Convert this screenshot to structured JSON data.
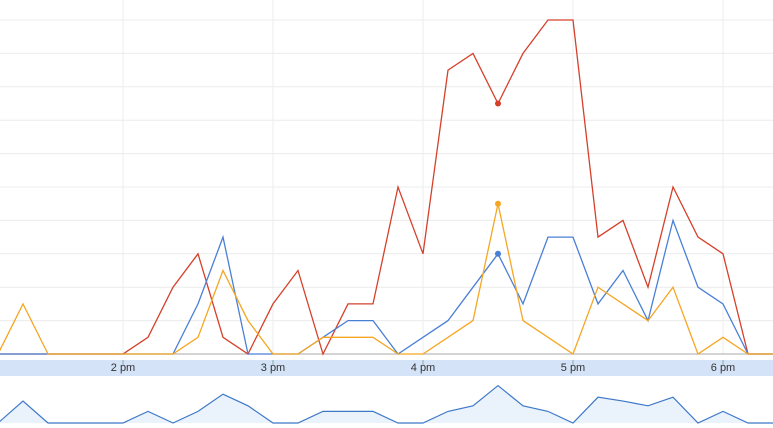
{
  "chart_data": {
    "type": "line",
    "x": [
      790,
      800,
      810,
      820,
      830,
      840,
      850,
      860,
      870,
      880,
      890,
      900,
      910,
      920,
      930,
      940,
      950,
      960,
      970,
      980,
      990,
      1000,
      1010,
      1020,
      1030,
      1040,
      1050,
      1060,
      1070,
      1080,
      1090,
      1100
    ],
    "series": [
      {
        "color": "#d6402a",
        "values": [
          0,
          0,
          0,
          0,
          0,
          0,
          0.5,
          2,
          3,
          0.5,
          0,
          1.5,
          2.5,
          0,
          1.5,
          1.5,
          5,
          3,
          8.5,
          9,
          7.5,
          9,
          10,
          10,
          3.5,
          4,
          2,
          5,
          3.5,
          3,
          0,
          0
        ]
      },
      {
        "color": "#4a7fd6",
        "values": [
          0,
          0,
          0,
          0,
          0,
          0,
          0,
          0,
          1.5,
          3.5,
          0,
          0,
          0,
          0.5,
          1,
          1,
          0,
          0.5,
          1,
          2,
          3,
          1.5,
          3.5,
          3.5,
          1.5,
          2.5,
          1,
          4,
          2,
          1.5,
          0,
          0
        ]
      },
      {
        "color": "#f5a623",
        "values": [
          0,
          1.5,
          0,
          0,
          0,
          0,
          0,
          0,
          0.5,
          2.5,
          1,
          0,
          0,
          0.5,
          0.5,
          0.5,
          0,
          0,
          0.5,
          1,
          4.5,
          1,
          0.5,
          0,
          2,
          1.5,
          1,
          2,
          0,
          0.5,
          0,
          0
        ]
      }
    ],
    "highlighted_point": 20,
    "xlim": [
      790.8,
      1100
    ],
    "xticks": [
      {
        "value": 840,
        "label": "2 pm"
      },
      {
        "value": 900,
        "label": "3 pm"
      },
      {
        "value": 960,
        "label": "4 pm"
      },
      {
        "value": 1020,
        "label": "5 pm"
      },
      {
        "value": 1080,
        "label": "6 pm"
      }
    ],
    "ylim": [
      0,
      10
    ],
    "yticks": [
      0,
      1,
      2,
      3,
      4,
      5,
      6,
      7,
      8,
      9,
      10
    ],
    "grid": true,
    "navigator": {
      "color": "#3c78c8",
      "ylim": [
        0,
        10
      ],
      "values": [
        0,
        5.1,
        0,
        0,
        0,
        0,
        2.7,
        0,
        2.7,
        6.7,
        4,
        0,
        0,
        2.7,
        2.7,
        2.7,
        0,
        0,
        2.7,
        4,
        8.7,
        4,
        2.7,
        0,
        6,
        5.1,
        4,
        6,
        0,
        2.7,
        0,
        0
      ]
    }
  }
}
